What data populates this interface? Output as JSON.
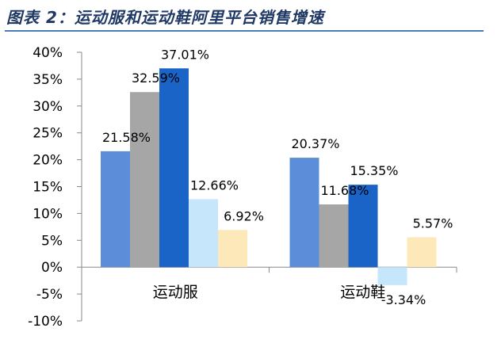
{
  "title": "图表 2：运动服和运动鞋阿里平台销售增速",
  "chart_data": {
    "type": "bar",
    "categories": [
      "运动服",
      "运动鞋"
    ],
    "series": [
      {
        "values": [
          21.58,
          20.37
        ],
        "color": "#5b8dd9"
      },
      {
        "values": [
          32.59,
          11.68
        ],
        "color": "#a6a6a6"
      },
      {
        "values": [
          37.01,
          15.35
        ],
        "color": "#1a64c8"
      },
      {
        "values": [
          12.66,
          -3.34
        ],
        "color": "#c6e6fb"
      },
      {
        "values": [
          6.92,
          5.57
        ],
        "color": "#fce8b8"
      }
    ],
    "data_labels": [
      [
        "21.58%",
        "20.37%"
      ],
      [
        "32.59%",
        "11.68%"
      ],
      [
        "37.01%",
        "15.35%"
      ],
      [
        "12.66%",
        "-3.34%"
      ],
      [
        "6.92%",
        "5.57%"
      ]
    ],
    "ylim": [
      -10,
      40
    ],
    "yticks": [
      -10,
      -5,
      0,
      5,
      10,
      15,
      20,
      25,
      30,
      35,
      40
    ],
    "ytick_labels": [
      "-10%",
      "-5%",
      "0%",
      "5%",
      "10%",
      "15%",
      "20%",
      "25%",
      "30%",
      "35%",
      "40%"
    ],
    "grid": false,
    "legend": "none"
  }
}
